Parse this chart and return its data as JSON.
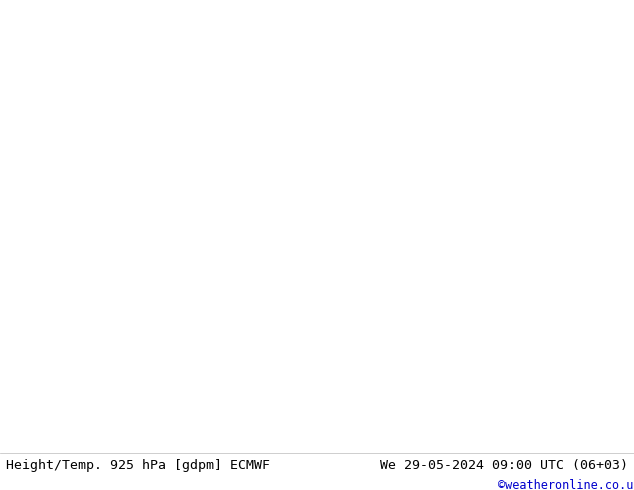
{
  "title_left": "Height/Temp. 925 hPa [gdpm] ECMWF",
  "title_right": "We 29-05-2024 09:00 UTC (06+03)",
  "title_right2": "©weatheronline.co.uk",
  "fig_width": 6.34,
  "fig_height": 4.9,
  "dpi": 100,
  "land_color": "#c8f0a0",
  "sea_color": "#d2d2d2",
  "border_color": "#aaaaaa",
  "coast_color": "#aaaaaa",
  "bottom_bar_color": "#ffffff",
  "text_color_left": "#000000",
  "text_color_right": "#000000",
  "text_color_copy": "#0000cc",
  "font_size_title": 9.5,
  "font_size_copy": 8.5,
  "map_lon_min": -15,
  "map_lon_max": 55,
  "map_lat_min": 20,
  "map_lat_max": 60,
  "orange_color": "#ff8c00",
  "red_color": "#cc0000",
  "magenta_color": "#cc00aa",
  "black_color": "#000000",
  "lw_contour": 1.6,
  "dash_seq": [
    7,
    4
  ]
}
